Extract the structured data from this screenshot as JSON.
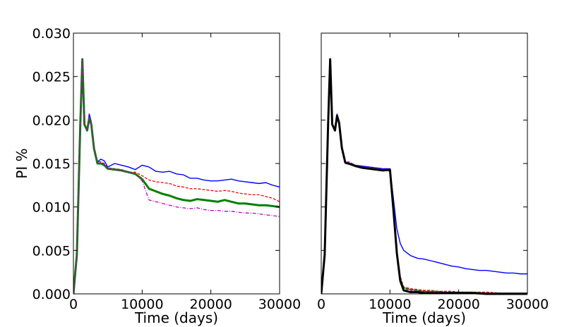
{
  "chart_data": [
    {
      "type": "line",
      "title": "",
      "xlabel": "Time (days)",
      "ylabel": "PI %",
      "xlim": [
        0,
        30000
      ],
      "ylim": [
        0,
        0.03
      ],
      "xticks": [
        "0",
        "10000",
        "20000",
        "30000"
      ],
      "yticks": [
        "0.000",
        "0.005",
        "0.010",
        "0.015",
        "0.020",
        "0.025",
        "0.030"
      ],
      "grid": false,
      "series": [
        {
          "color": "#0000ff",
          "style": "solid",
          "x": [
            0,
            500,
            1000,
            1300,
            1600,
            2000,
            2300,
            2600,
            3000,
            3500,
            4000,
            4500,
            5000,
            6000,
            7000,
            8000,
            9000,
            10000,
            11000,
            12000,
            13000,
            14000,
            15000,
            16000,
            17000,
            18000,
            19000,
            20000,
            21000,
            22000,
            23000,
            24000,
            25000,
            26000,
            27000,
            28000,
            29000,
            30000
          ],
          "y": [
            0.0,
            0.0045,
            0.0195,
            0.027,
            0.0195,
            0.0188,
            0.0207,
            0.0198,
            0.0168,
            0.0152,
            0.0155,
            0.0153,
            0.0146,
            0.015,
            0.0148,
            0.0146,
            0.0143,
            0.0148,
            0.0146,
            0.0141,
            0.014,
            0.0141,
            0.0138,
            0.0137,
            0.0133,
            0.0133,
            0.0131,
            0.013,
            0.013,
            0.0131,
            0.0132,
            0.013,
            0.0129,
            0.0128,
            0.0127,
            0.0128,
            0.0125,
            0.0123
          ]
        },
        {
          "color": "#ff0000",
          "style": "dashed",
          "x": [
            0,
            500,
            1000,
            1300,
            1600,
            2000,
            2300,
            2600,
            3000,
            3500,
            4000,
            4500,
            5000,
            6000,
            7000,
            8000,
            9000,
            10000,
            11000,
            12000,
            13000,
            14000,
            15000,
            16000,
            17000,
            18000,
            19000,
            20000,
            21000,
            22000,
            23000,
            24000,
            25000,
            26000,
            27000,
            28000,
            29000,
            30000
          ],
          "y": [
            0.0,
            0.0045,
            0.0195,
            0.027,
            0.0195,
            0.0188,
            0.0204,
            0.0196,
            0.0168,
            0.0152,
            0.0152,
            0.015,
            0.0145,
            0.0144,
            0.0143,
            0.014,
            0.014,
            0.0136,
            0.0131,
            0.0129,
            0.0128,
            0.0127,
            0.0124,
            0.0123,
            0.0121,
            0.0121,
            0.012,
            0.0119,
            0.0118,
            0.0119,
            0.0118,
            0.0116,
            0.0115,
            0.0114,
            0.0114,
            0.0112,
            0.011,
            0.0106
          ]
        },
        {
          "color": "#008000",
          "style": "thick",
          "x": [
            0,
            500,
            1000,
            1300,
            1600,
            2000,
            2300,
            2600,
            3000,
            3500,
            4000,
            4500,
            5000,
            6000,
            7000,
            8000,
            9000,
            10000,
            11000,
            12000,
            13000,
            14000,
            15000,
            16000,
            17000,
            18000,
            19000,
            20000,
            21000,
            22000,
            23000,
            24000,
            25000,
            26000,
            27000,
            28000,
            29000,
            30000
          ],
          "y": [
            0.0,
            0.0045,
            0.0195,
            0.027,
            0.0195,
            0.0188,
            0.0202,
            0.0195,
            0.0167,
            0.015,
            0.015,
            0.0148,
            0.0144,
            0.0143,
            0.0142,
            0.014,
            0.0138,
            0.0132,
            0.0121,
            0.0118,
            0.0115,
            0.0113,
            0.011,
            0.0108,
            0.0107,
            0.0109,
            0.0108,
            0.0107,
            0.0106,
            0.0108,
            0.0106,
            0.0104,
            0.0104,
            0.0103,
            0.0102,
            0.0102,
            0.0101,
            0.01
          ]
        },
        {
          "color": "#bf00bf",
          "style": "dash-dot",
          "x": [
            0,
            500,
            1000,
            1300,
            1600,
            2000,
            2300,
            2600,
            3000,
            3500,
            4000,
            4500,
            5000,
            6000,
            7000,
            8000,
            9000,
            10000,
            11000,
            12000,
            13000,
            14000,
            15000,
            16000,
            17000,
            18000,
            19000,
            20000,
            21000,
            22000,
            23000,
            24000,
            25000,
            26000,
            27000,
            28000,
            29000,
            30000
          ],
          "y": [
            0.0,
            0.0045,
            0.0195,
            0.027,
            0.0195,
            0.0188,
            0.0203,
            0.0195,
            0.0167,
            0.015,
            0.0151,
            0.0149,
            0.0144,
            0.0143,
            0.0142,
            0.014,
            0.0138,
            0.013,
            0.0108,
            0.0106,
            0.0104,
            0.0102,
            0.01,
            0.0099,
            0.0098,
            0.0099,
            0.0097,
            0.0096,
            0.0096,
            0.0095,
            0.0095,
            0.0094,
            0.0093,
            0.0093,
            0.0092,
            0.0091,
            0.009,
            0.0089
          ]
        }
      ]
    },
    {
      "type": "line",
      "title": "",
      "xlabel": "Time (days)",
      "ylabel": "",
      "xlim": [
        0,
        30000
      ],
      "ylim": [
        0,
        0.03
      ],
      "xticks": [
        "0",
        "10000",
        "20000",
        "30000"
      ],
      "yticks": [],
      "grid": false,
      "series": [
        {
          "color": "#0000ff",
          "style": "solid",
          "x": [
            0,
            500,
            1000,
            1300,
            1600,
            2000,
            2300,
            2600,
            3000,
            3500,
            4000,
            5000,
            6000,
            7000,
            8000,
            9000,
            10000,
            10500,
            11000,
            11500,
            12000,
            13000,
            14000,
            15000,
            16000,
            17000,
            18000,
            19000,
            20000,
            21000,
            22000,
            23000,
            24000,
            25000,
            26000,
            27000,
            28000,
            29000,
            30000
          ],
          "y": [
            0.0,
            0.0045,
            0.0195,
            0.027,
            0.0195,
            0.0188,
            0.0207,
            0.0198,
            0.0168,
            0.0152,
            0.015,
            0.0148,
            0.0147,
            0.0146,
            0.0145,
            0.0144,
            0.0144,
            0.011,
            0.0075,
            0.0058,
            0.005,
            0.0044,
            0.0041,
            0.004,
            0.0038,
            0.0036,
            0.0034,
            0.0032,
            0.0031,
            0.0029,
            0.0028,
            0.0027,
            0.0027,
            0.0026,
            0.0025,
            0.0024,
            0.0024,
            0.0023,
            0.0023
          ]
        },
        {
          "color": "#ff0000",
          "style": "dashed",
          "x": [
            0,
            500,
            1000,
            1300,
            1600,
            2000,
            2300,
            2600,
            3000,
            3500,
            4000,
            5000,
            6000,
            7000,
            8000,
            9000,
            10000,
            10500,
            11000,
            11500,
            12000,
            13000,
            14000,
            15000,
            16000,
            17000,
            18000,
            19000,
            20000,
            22000,
            24000,
            26000,
            28000,
            30000
          ],
          "y": [
            0.0,
            0.0045,
            0.0195,
            0.027,
            0.0195,
            0.0188,
            0.0204,
            0.0196,
            0.0168,
            0.0152,
            0.015,
            0.0147,
            0.0146,
            0.0145,
            0.0144,
            0.0143,
            0.0142,
            0.01,
            0.005,
            0.002,
            0.0008,
            0.0006,
            0.0005,
            0.0004,
            0.0004,
            0.0003,
            0.0003,
            0.0003,
            0.0002,
            0.0002,
            0.0002,
            0.0001,
            0.0001,
            0.0001
          ]
        },
        {
          "color": "#008000",
          "style": "solid",
          "x": [
            0,
            500,
            1000,
            1300,
            1600,
            2000,
            2300,
            2600,
            3000,
            3500,
            4000,
            5000,
            6000,
            7000,
            8000,
            9000,
            10000,
            10500,
            11000,
            11500,
            12000,
            13000,
            14000,
            15000,
            16000,
            17000,
            18000,
            19000,
            20000,
            22000,
            24000,
            26000,
            28000,
            30000
          ],
          "y": [
            0.0,
            0.0045,
            0.0195,
            0.027,
            0.0195,
            0.0188,
            0.0203,
            0.0195,
            0.0167,
            0.015,
            0.0149,
            0.0147,
            0.0145,
            0.0144,
            0.0143,
            0.0142,
            0.0142,
            0.0098,
            0.0048,
            0.0018,
            0.0007,
            0.0005,
            0.0004,
            0.0003,
            0.0003,
            0.0003,
            0.0002,
            0.0002,
            0.0002,
            0.0002,
            0.0001,
            0.0001,
            0.0001,
            0.0001
          ]
        },
        {
          "color": "#bf00bf",
          "style": "dashed",
          "x": [
            0,
            500,
            1000,
            1300,
            1600,
            2000,
            2300,
            2600,
            3000,
            3500,
            4000,
            5000,
            6000,
            7000,
            8000,
            9000,
            10000,
            10500,
            11000,
            11500,
            12000,
            13000,
            14000,
            15000,
            16000,
            17000,
            18000,
            19000,
            20000,
            22000,
            24000,
            26000,
            28000,
            30000
          ],
          "y": [
            0.0,
            0.0045,
            0.0195,
            0.027,
            0.0195,
            0.0188,
            0.0203,
            0.0195,
            0.0167,
            0.0151,
            0.0152,
            0.0148,
            0.0146,
            0.0144,
            0.0143,
            0.0142,
            0.0141,
            0.0096,
            0.0046,
            0.0016,
            0.0006,
            0.0004,
            0.0003,
            0.0003,
            0.0002,
            0.0002,
            0.0002,
            0.0002,
            0.0001,
            0.0001,
            0.0001,
            0.0001,
            0.0001,
            0.0001
          ]
        },
        {
          "color": "#000000",
          "style": "thick",
          "x": [
            0,
            500,
            1000,
            1300,
            1600,
            2000,
            2300,
            2600,
            3000,
            3500,
            4000,
            5000,
            6000,
            7000,
            8000,
            9000,
            10000,
            10500,
            11000,
            11500,
            12000,
            13000,
            14000,
            15000,
            16000,
            17000,
            18000,
            19000,
            20000,
            22000,
            24000,
            26000,
            28000,
            30000
          ],
          "y": [
            0.0,
            0.0045,
            0.0195,
            0.027,
            0.0195,
            0.0188,
            0.0205,
            0.0197,
            0.0168,
            0.0151,
            0.015,
            0.0147,
            0.0145,
            0.0144,
            0.0143,
            0.0142,
            0.0143,
            0.0097,
            0.0047,
            0.0015,
            0.0004,
            0.0002,
            0.0002,
            0.0001,
            0.0001,
            0.0001,
            0.0001,
            0.0001,
            0.0001,
            0.0001,
            0.0,
            0.0,
            0.0,
            0.0
          ]
        }
      ]
    }
  ]
}
